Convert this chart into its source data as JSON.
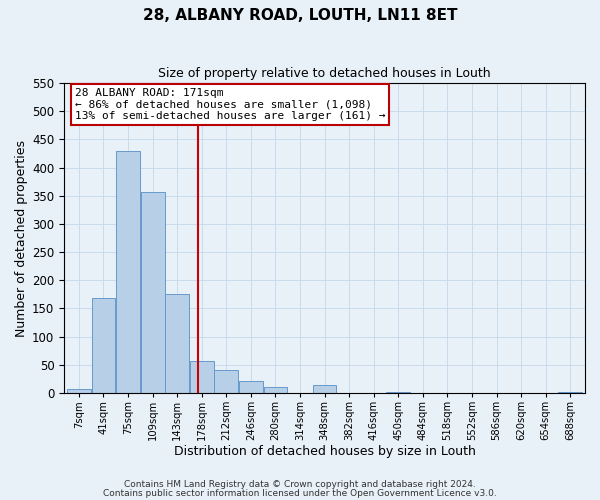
{
  "title": "28, ALBANY ROAD, LOUTH, LN11 8ET",
  "subtitle": "Size of property relative to detached houses in Louth",
  "xlabel": "Distribution of detached houses by size in Louth",
  "ylabel": "Number of detached properties",
  "bar_labels": [
    "7sqm",
    "41sqm",
    "75sqm",
    "109sqm",
    "143sqm",
    "178sqm",
    "212sqm",
    "246sqm",
    "280sqm",
    "314sqm",
    "348sqm",
    "382sqm",
    "416sqm",
    "450sqm",
    "484sqm",
    "518sqm",
    "552sqm",
    "586sqm",
    "620sqm",
    "654sqm",
    "688sqm"
  ],
  "bar_heights": [
    8,
    168,
    430,
    356,
    175,
    57,
    40,
    22,
    10,
    0,
    15,
    0,
    0,
    1,
    0,
    0,
    0,
    0,
    0,
    0,
    2
  ],
  "bar_color": "#b8cfe8",
  "bar_edgecolor": "#6699cc",
  "bar_linewidth": 0.7,
  "vline_x": 4.85,
  "vline_color": "#cc0000",
  "ylim": [
    0,
    550
  ],
  "yticks": [
    0,
    50,
    100,
    150,
    200,
    250,
    300,
    350,
    400,
    450,
    500,
    550
  ],
  "annotation_title": "28 ALBANY ROAD: 171sqm",
  "annotation_line1": "← 86% of detached houses are smaller (1,098)",
  "annotation_line2": "13% of semi-detached houses are larger (161) →",
  "annotation_box_facecolor": "#ffffff",
  "annotation_box_edgecolor": "#bb0000",
  "grid_color": "#c5d8ec",
  "bg_color": "#e8f0f8",
  "footnote1": "Contains HM Land Registry data © Crown copyright and database right 2024.",
  "footnote2": "Contains public sector information licensed under the Open Government Licence v3.0."
}
